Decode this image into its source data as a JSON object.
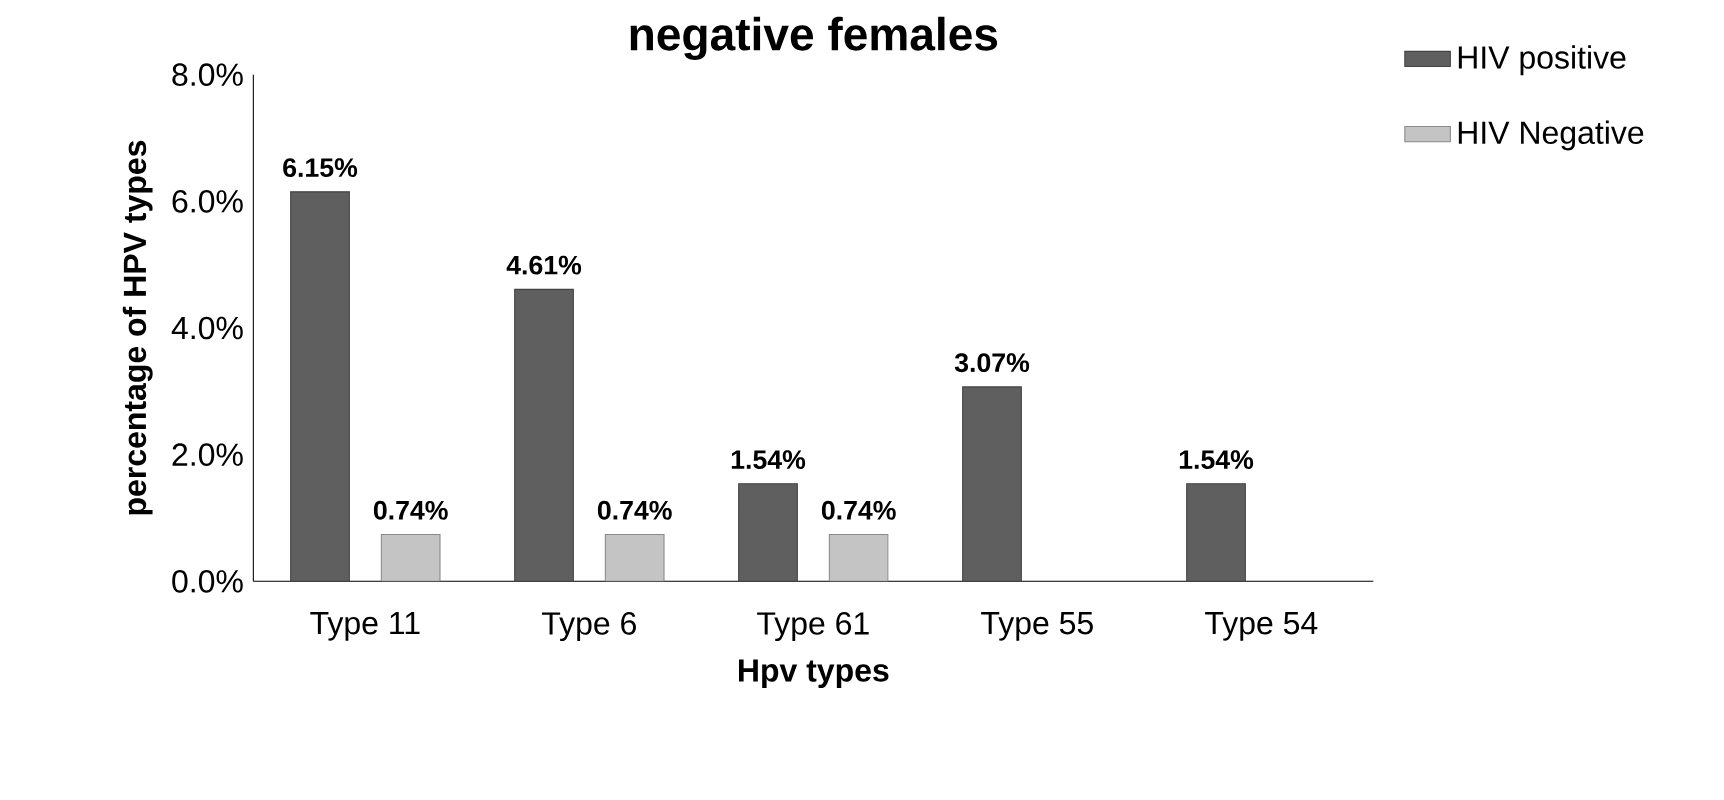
{
  "chart_data": {
    "type": "bar",
    "title": "negative females",
    "xlabel": "Hpv types",
    "ylabel": "percentage of  HPV types",
    "categories": [
      "Type 11",
      "Type 6",
      "Type 61",
      "Type 55",
      "Type 54"
    ],
    "series": [
      {
        "name": "HIV positive",
        "color": "#5f5f5f",
        "values": [
          6.15,
          4.61,
          1.54,
          3.07,
          1.54
        ],
        "value_labels": [
          "6.15%",
          "4.61%",
          "1.54%",
          "3.07%",
          "1.54%"
        ]
      },
      {
        "name": "HIV Negative",
        "color": "#c4c4c4",
        "values": [
          0.74,
          0.74,
          0.74,
          null,
          null
        ],
        "value_labels": [
          "0.74%",
          "0.74%",
          "0.74%",
          null,
          null
        ]
      }
    ],
    "ylim": [
      0,
      8
    ],
    "yticks": [
      {
        "value": 0,
        "label": "0.0%"
      },
      {
        "value": 2,
        "label": "2.0%"
      },
      {
        "value": 4,
        "label": "4.0%"
      },
      {
        "value": 6,
        "label": "6.0%"
      },
      {
        "value": 8,
        "label": "8.0%"
      }
    ],
    "legend": "top right"
  }
}
